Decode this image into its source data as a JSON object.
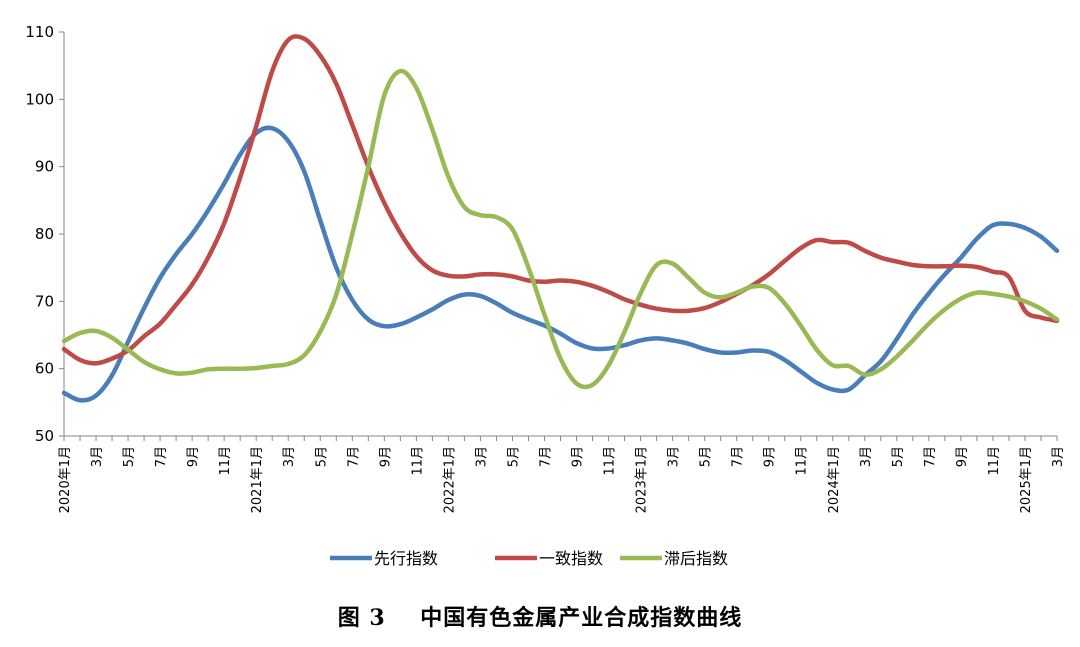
{
  "caption": {
    "label": "图 3",
    "title": "中国有色金属产业合成指数曲线"
  },
  "chart_data": {
    "type": "line",
    "title": "中国有色金属产业合成指数曲线",
    "xlabel": "",
    "ylabel": "",
    "ylim": [
      50,
      110
    ],
    "yticks": [
      50,
      60,
      70,
      80,
      90,
      100,
      110
    ],
    "x": [
      "2020年1月",
      "2020年2月",
      "3月",
      "2020年4月",
      "5月",
      "2020年6月",
      "7月",
      "2020年8月",
      "9月",
      "2020年10月",
      "11月",
      "2020年12月",
      "2021年1月",
      "2021年2月",
      "3月",
      "2021年4月",
      "5月",
      "2021年6月",
      "7月",
      "2021年8月",
      "9月",
      "2021年10月",
      "11月",
      "2021年12月",
      "2022年1月",
      "2022年2月",
      "3月",
      "2022年4月",
      "5月",
      "2022年6月",
      "7月",
      "2022年8月",
      "9月",
      "2022年10月",
      "11月",
      "2022年12月",
      "2023年1月",
      "2023年2月",
      "3月",
      "2023年4月",
      "5月",
      "2023年6月",
      "7月",
      "2023年8月",
      "9月",
      "2023年10月",
      "11月",
      "2023年12月",
      "2024年1月",
      "2024年2月",
      "3月",
      "2024年4月",
      "5月",
      "2024年6月",
      "7月",
      "2024年8月",
      "9月",
      "2024年10月",
      "11月",
      "2024年12月",
      "2025年1月",
      "2025年2月",
      "3月"
    ],
    "x_tick_labels": [
      {
        "i": 0,
        "label": "2020年1月"
      },
      {
        "i": 2,
        "label": "3月"
      },
      {
        "i": 4,
        "label": "5月"
      },
      {
        "i": 6,
        "label": "7月"
      },
      {
        "i": 8,
        "label": "9月"
      },
      {
        "i": 10,
        "label": "11月"
      },
      {
        "i": 12,
        "label": "2021年1月"
      },
      {
        "i": 14,
        "label": "3月"
      },
      {
        "i": 16,
        "label": "5月"
      },
      {
        "i": 18,
        "label": "7月"
      },
      {
        "i": 20,
        "label": "9月"
      },
      {
        "i": 22,
        "label": "11月"
      },
      {
        "i": 24,
        "label": "2022年1月"
      },
      {
        "i": 26,
        "label": "3月"
      },
      {
        "i": 28,
        "label": "5月"
      },
      {
        "i": 30,
        "label": "7月"
      },
      {
        "i": 32,
        "label": "9月"
      },
      {
        "i": 34,
        "label": "11月"
      },
      {
        "i": 36,
        "label": "2023年1月"
      },
      {
        "i": 38,
        "label": "3月"
      },
      {
        "i": 40,
        "label": "5月"
      },
      {
        "i": 42,
        "label": "7月"
      },
      {
        "i": 44,
        "label": "9月"
      },
      {
        "i": 46,
        "label": "11月"
      },
      {
        "i": 48,
        "label": "2024年1月"
      },
      {
        "i": 50,
        "label": "3月"
      },
      {
        "i": 52,
        "label": "5月"
      },
      {
        "i": 54,
        "label": "7月"
      },
      {
        "i": 56,
        "label": "9月"
      },
      {
        "i": 58,
        "label": "11月"
      },
      {
        "i": 60,
        "label": "2025年1月"
      },
      {
        "i": 62,
        "label": "3月"
      }
    ],
    "legend_position": "bottom",
    "grid": false,
    "series": [
      {
        "name": "先行指数",
        "color": "#4a7ebb",
        "values": [
          56.4,
          55.3,
          56.0,
          59.0,
          64.0,
          69.0,
          73.5,
          77.0,
          80.0,
          83.5,
          87.5,
          91.8,
          95.0,
          95.7,
          93.8,
          89.3,
          82.0,
          75.0,
          70.2,
          67.3,
          66.3,
          66.6,
          67.6,
          68.8,
          70.2,
          71.0,
          70.8,
          69.7,
          68.3,
          67.3,
          66.4,
          65.2,
          63.8,
          63.0,
          63.0,
          63.5,
          64.2,
          64.5,
          64.2,
          63.7,
          62.9,
          62.4,
          62.4,
          62.7,
          62.5,
          61.3,
          59.6,
          57.9,
          56.9,
          56.9,
          59.0,
          61.1,
          64.4,
          68.1,
          71.2,
          74.0,
          76.5,
          79.3,
          81.3,
          81.5,
          80.9,
          79.6,
          77.5
        ]
      },
      {
        "name": "一致指数",
        "color": "#be4b48",
        "values": [
          62.9,
          61.3,
          60.8,
          61.5,
          62.7,
          64.8,
          66.7,
          69.5,
          72.5,
          76.5,
          81.6,
          88.4,
          96.0,
          104.2,
          108.8,
          109.0,
          106.5,
          102.3,
          96.2,
          90.0,
          84.6,
          80.2,
          76.7,
          74.6,
          73.8,
          73.7,
          74.0,
          74.0,
          73.7,
          73.1,
          72.9,
          73.1,
          72.9,
          72.3,
          71.4,
          70.3,
          69.5,
          68.9,
          68.6,
          68.6,
          69.0,
          69.9,
          71.1,
          72.4,
          74.0,
          76.0,
          77.9,
          79.1,
          78.8,
          78.7,
          77.5,
          76.5,
          75.9,
          75.4,
          75.2,
          75.2,
          75.3,
          75.1,
          74.4,
          73.6,
          68.6,
          67.6,
          67.1
        ]
      },
      {
        "name": "滞后指数",
        "color": "#98b954",
        "values": [
          64.1,
          65.3,
          65.6,
          64.6,
          62.8,
          61.0,
          59.9,
          59.3,
          59.4,
          59.9,
          60.0,
          60.0,
          60.1,
          60.4,
          60.7,
          62.0,
          65.5,
          71.0,
          80.0,
          90.0,
          100.6,
          104.2,
          101.7,
          95.5,
          88.5,
          84.0,
          82.8,
          82.5,
          80.7,
          75.0,
          68.0,
          61.5,
          57.8,
          57.6,
          60.5,
          65.5,
          71.2,
          75.4,
          75.6,
          73.5,
          71.3,
          70.6,
          71.3,
          72.2,
          72.0,
          69.7,
          66.4,
          62.8,
          60.5,
          60.4,
          59.1,
          59.9,
          61.8,
          64.2,
          66.7,
          68.8,
          70.4,
          71.3,
          71.1,
          70.7,
          70.0,
          68.9,
          67.3
        ]
      }
    ]
  }
}
